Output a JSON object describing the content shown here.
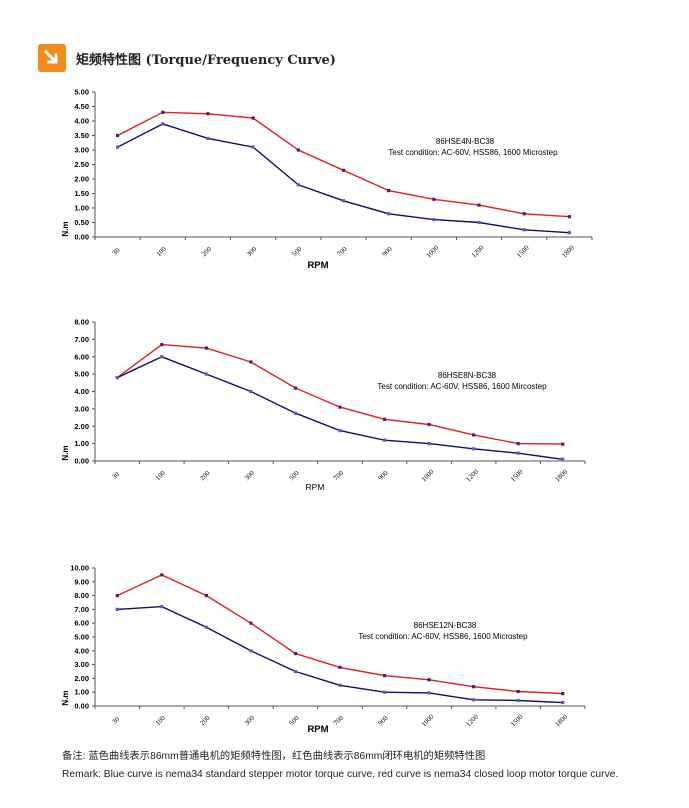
{
  "header": {
    "title": "矩频特性图 (Torque/Frequency Curve)",
    "icon": "arrow-down-right-icon",
    "accent": "#f28a1c"
  },
  "colors": {
    "blue": "#0d0d6b",
    "red": "#e02020",
    "axis": "#555555"
  },
  "chart_data": [
    {
      "type": "line",
      "title": "86HSE4N-BC38",
      "condition": "Test condition:    AC-60V,    HSS86,    1600 Microstep",
      "categories": [
        "30",
        "100",
        "200",
        "300",
        "500",
        "700",
        "900",
        "1000",
        "1200",
        "1500",
        "1800"
      ],
      "ylim": [
        0,
        5
      ],
      "yticks": [
        "0.00",
        "0.50",
        "1.00",
        "1.50",
        "2.00",
        "2.50",
        "3.00",
        "3.50",
        "4.00",
        "4.50",
        "5.00"
      ],
      "xlabel": "RPM",
      "ylabel": "N.m",
      "series": [
        {
          "name": "closed loop (red)",
          "values": [
            3.5,
            4.3,
            4.25,
            4.1,
            3.0,
            2.3,
            1.6,
            1.3,
            1.1,
            0.8,
            0.7
          ]
        },
        {
          "name": "standard (blue)",
          "values": [
            3.1,
            3.9,
            3.4,
            3.1,
            1.8,
            1.25,
            0.8,
            0.6,
            0.5,
            0.25,
            0.15
          ]
        }
      ]
    },
    {
      "type": "line",
      "title": "86HSE8N-BC38",
      "condition": "Test condition:    AC-60V,    HSS86,    1600 Mircostep",
      "categories": [
        "30",
        "100",
        "200",
        "300",
        "500",
        "700",
        "900",
        "1000",
        "1200",
        "1500",
        "1800"
      ],
      "ylim": [
        0,
        8
      ],
      "yticks": [
        "0.00",
        "1.00",
        "2.00",
        "3.00",
        "4.00",
        "5.00",
        "6.00",
        "7.00",
        "8.00"
      ],
      "xlabel": "RPM",
      "ylabel": "N.m",
      "series": [
        {
          "name": "closed loop (red)",
          "values": [
            4.8,
            6.7,
            6.5,
            5.7,
            4.2,
            3.1,
            2.4,
            2.1,
            1.5,
            1.0,
            0.97
          ]
        },
        {
          "name": "standard (blue)",
          "values": [
            4.8,
            6.0,
            5.0,
            4.0,
            2.75,
            1.75,
            1.2,
            1.0,
            0.7,
            0.45,
            0.1
          ]
        }
      ]
    },
    {
      "type": "line",
      "title": "86HSE12N-BC38",
      "condition": "Test condition:    AC-60V,    HSS86, 1600 Microstep",
      "categories": [
        "30",
        "100",
        "200",
        "300",
        "500",
        "700",
        "900",
        "1000",
        "1200",
        "1500",
        "1800"
      ],
      "ylim": [
        0,
        10
      ],
      "yticks": [
        "0.00",
        "1.00",
        "2.00",
        "3.00",
        "4.00",
        "5.00",
        "6.00",
        "7.00",
        "8.00",
        "9.00",
        "10.00"
      ],
      "xlabel": "RPM",
      "ylabel": "N.m",
      "series": [
        {
          "name": "closed loop (red)",
          "values": [
            8.0,
            9.5,
            8.0,
            6.0,
            3.8,
            2.8,
            2.2,
            1.9,
            1.4,
            1.05,
            0.9
          ]
        },
        {
          "name": "standard (blue)",
          "values": [
            7.0,
            7.2,
            5.7,
            4.0,
            2.5,
            1.5,
            1.0,
            0.95,
            0.45,
            0.4,
            0.25
          ]
        }
      ]
    }
  ],
  "notes": {
    "cn": "备注:    蓝色曲线表示86mm普通电机的矩频特性图，红色曲线表示86mm闭环电机的矩频特性图",
    "en": "Remark: Blue curve is nema34 standard stepper motor torque curve, red curve is nema34 closed loop motor torque curve."
  }
}
